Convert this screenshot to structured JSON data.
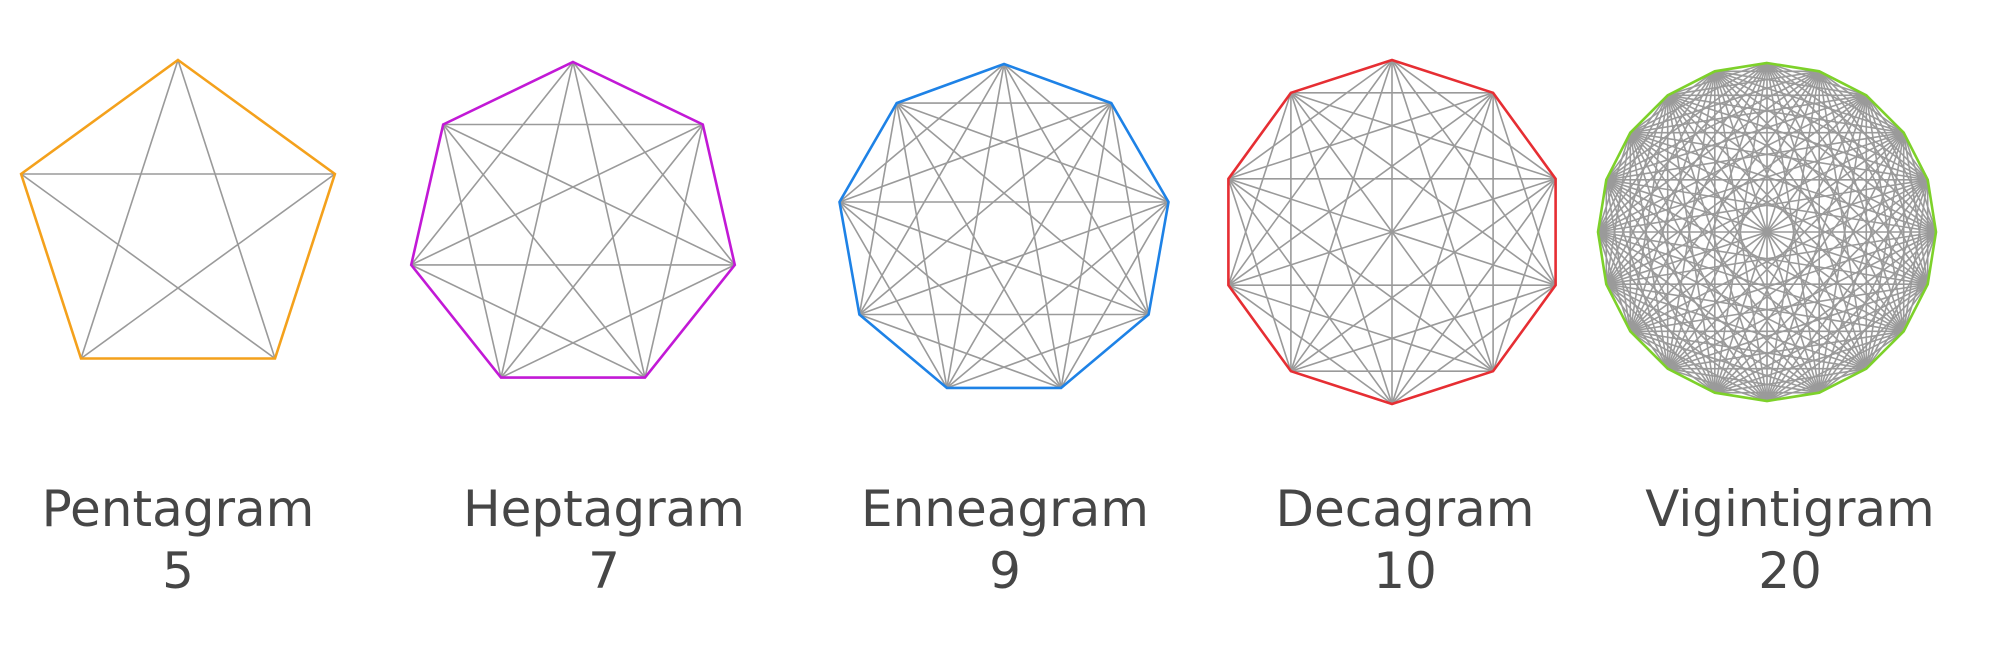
{
  "stars": [
    {
      "name": "Pentagram",
      "points": 5,
      "color": "#f4a11c"
    },
    {
      "name": "Heptagram",
      "points": 7,
      "color": "#c219d6"
    },
    {
      "name": "Enneagram",
      "points": 9,
      "color": "#1e82e6"
    },
    {
      "name": "Decagram",
      "points": 10,
      "color": "#e62e33"
    },
    {
      "name": "Vigintigram",
      "points": 20,
      "color": "#7dd12a"
    }
  ],
  "inner_line_color": "#9a9a9a",
  "labels": {
    "pentagram": {
      "name": "Pentagram",
      "count": "5"
    },
    "heptagram": {
      "name": "Heptagram",
      "count": "7"
    },
    "enneagram": {
      "name": "Enneagram",
      "count": "9"
    },
    "decagram": {
      "name": "Decagram",
      "count": "10"
    },
    "vigintigram": {
      "name": "Vigintigram",
      "count": "20"
    }
  }
}
